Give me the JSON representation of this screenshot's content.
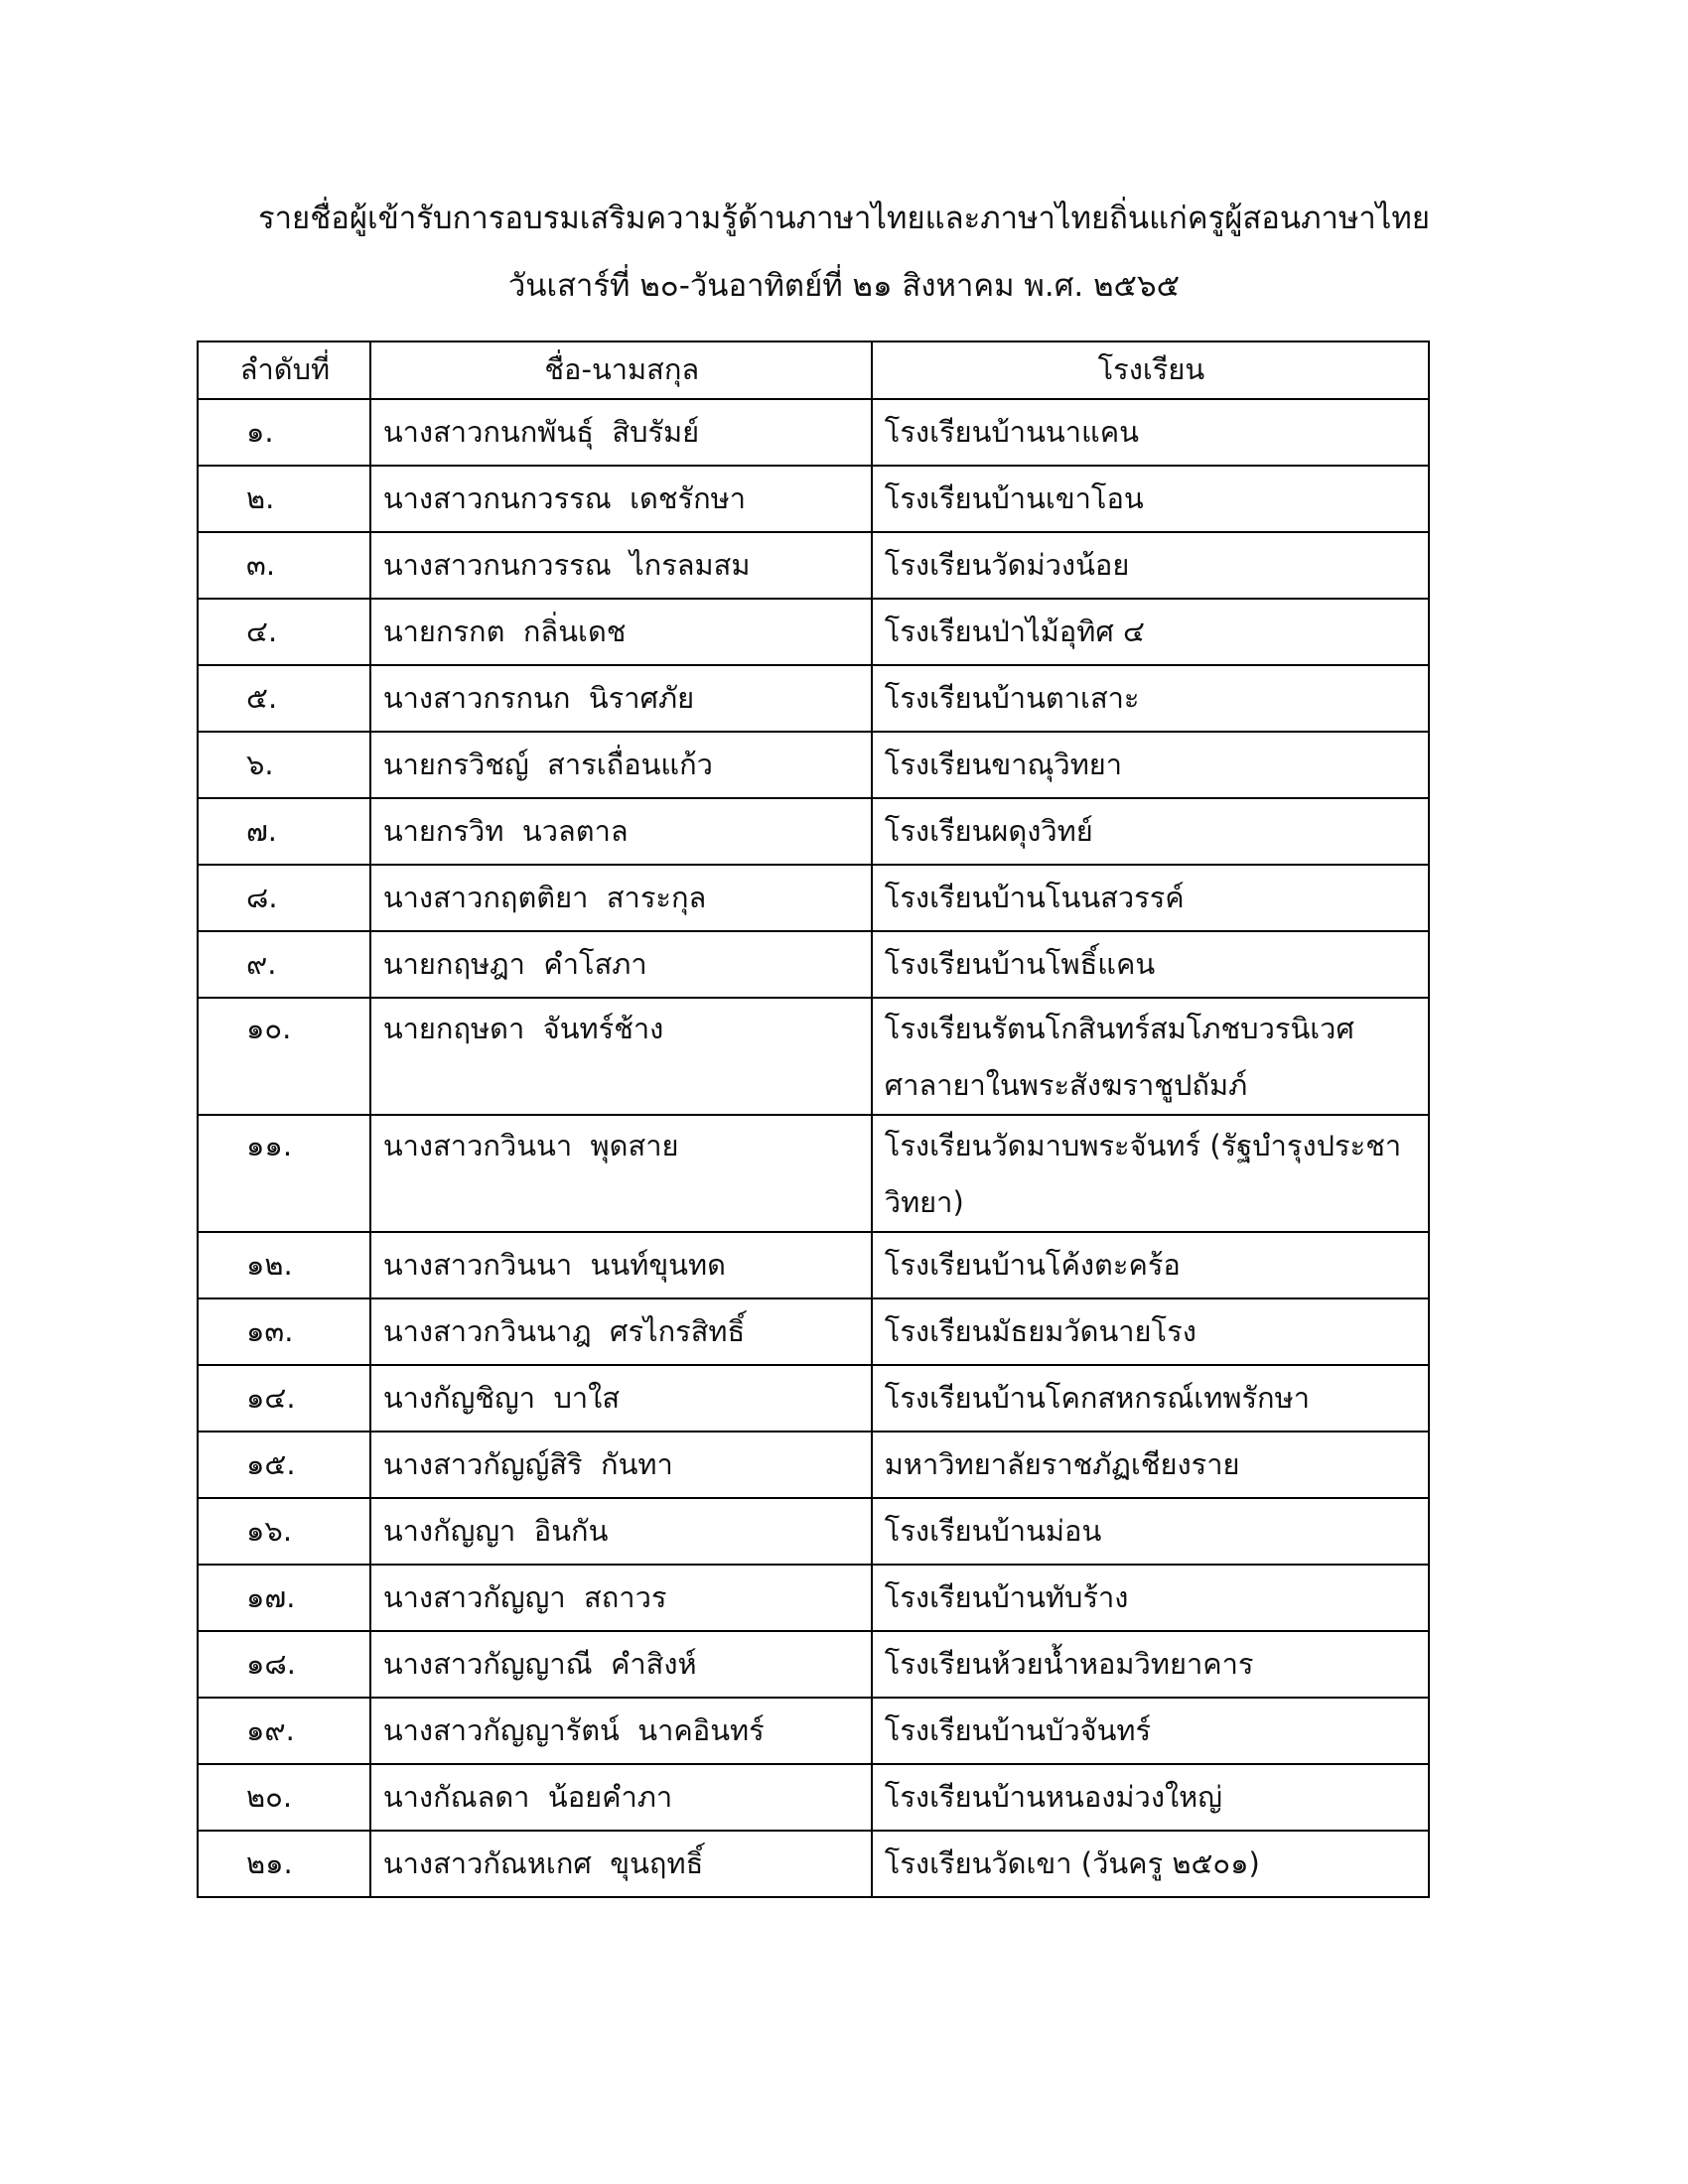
{
  "header": {
    "title_line1": "รายชื่อผู้เข้ารับการอบรมเสริมความรู้ด้านภาษาไทยและภาษาไทยถิ่นแก่ครูผู้สอนภาษาไทย",
    "title_line2": "วันเสาร์ที่ ๒๐-วันอาทิตย์ที่ ๒๑ สิงหาคม พ.ศ. ๒๕๖๕"
  },
  "table": {
    "columns": [
      "ลำดับที่",
      "ชื่อ-นามสกุล",
      "โรงเรียน"
    ],
    "rows": [
      {
        "no": "๑.",
        "name": "นางสาวกนกพันธุ์  สิบรัมย์",
        "school": "โรงเรียนบ้านนาแคน"
      },
      {
        "no": "๒.",
        "name": "นางสาวกนกวรรณ  เดชรักษา",
        "school": "โรงเรียนบ้านเขาโอน"
      },
      {
        "no": "๓.",
        "name": "นางสาวกนกวรรณ  ไกรลมสม",
        "school": "โรงเรียนวัดม่วงน้อย"
      },
      {
        "no": "๔.",
        "name": "นายกรกต  กลิ่นเดช",
        "school": "โรงเรียนป่าไม้อุทิศ ๔"
      },
      {
        "no": "๕.",
        "name": "นางสาวกรกนก  นิราศภัย",
        "school": "โรงเรียนบ้านตาเสาะ"
      },
      {
        "no": "๖.",
        "name": "นายกรวิชญ์  สารเถื่อนแก้ว",
        "school": "โรงเรียนขาณุวิทยา"
      },
      {
        "no": "๗.",
        "name": "นายกรวิท  นวลตาล",
        "school": "โรงเรียนผดุงวิทย์"
      },
      {
        "no": "๘.",
        "name": "นางสาวกฤตติยา  สาระกุล",
        "school": "โรงเรียนบ้านโนนสวรรค์"
      },
      {
        "no": "๙.",
        "name": "นายกฤษฎา  คำโสภา",
        "school": "โรงเรียนบ้านโพธิ์แคน"
      },
      {
        "no": "๑๐.",
        "name": "นายกฤษดา  จันทร์ช้าง",
        "school": "โรงเรียนรัตนโกสินทร์สมโภชบวรนิเวศศาลายาในพระสังฆราชูปถัมภ์"
      },
      {
        "no": "๑๑.",
        "name": "นางสาวกวินนา  พุดสาย",
        "school": "โรงเรียนวัดมาบพระจันทร์ (รัฐบำรุงประชาวิทยา)"
      },
      {
        "no": "๑๒.",
        "name": "นางสาวกวินนา  นนท์ขุนทด",
        "school": "โรงเรียนบ้านโค้งตะคร้อ"
      },
      {
        "no": "๑๓.",
        "name": "นางสาวกวินนาฎ  ศรไกรสิทธิ์",
        "school": "โรงเรียนมัธยมวัดนายโรง"
      },
      {
        "no": "๑๔.",
        "name": "นางกัญชิญา  บาใส",
        "school": "โรงเรียนบ้านโคกสหกรณ์เทพรักษา"
      },
      {
        "no": "๑๕.",
        "name": "นางสาวกัญญ์สิริ  กันทา",
        "school": "มหาวิทยาลัยราชภัฏเชียงราย"
      },
      {
        "no": "๑๖.",
        "name": "นางกัญญา  อินกัน",
        "school": "โรงเรียนบ้านม่อน"
      },
      {
        "no": "๑๗.",
        "name": "นางสาวกัญญา  สถาวร",
        "school": "โรงเรียนบ้านทับร้าง"
      },
      {
        "no": "๑๘.",
        "name": "นางสาวกัญญาณี  คำสิงห์",
        "school": "โรงเรียนห้วยน้ำหอมวิทยาคาร"
      },
      {
        "no": "๑๙.",
        "name": "นางสาวกัญญารัตน์  นาคอินทร์",
        "school": "โรงเรียนบ้านบัวจันทร์"
      },
      {
        "no": "๒๐.",
        "name": "นางกัณลดา  น้อยคำภา",
        "school": "โรงเรียนบ้านหนองม่วงใหญ่"
      },
      {
        "no": "๒๑.",
        "name": "นางสาวกัณหเกศ  ขุนฤทธิ์",
        "school": "โรงเรียนวัดเขา (วันครู ๒๕๐๑)"
      }
    ]
  }
}
